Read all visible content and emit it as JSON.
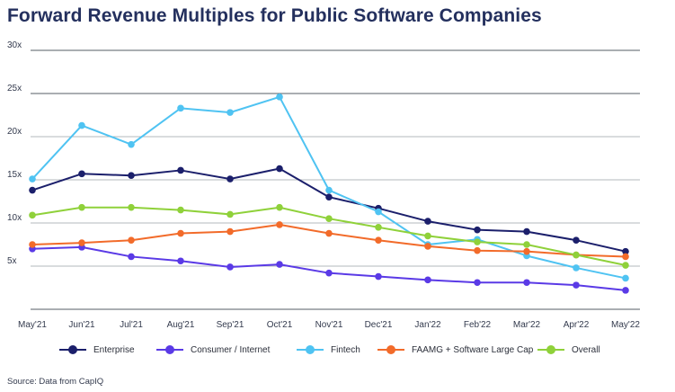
{
  "chart_data": {
    "type": "line",
    "title": "Forward Revenue Multiples for Public Software Companies",
    "source": "Source: Data from CapIQ",
    "xlabel": "",
    "ylabel": "",
    "categories": [
      "May'21",
      "Jun'21",
      "Jul'21",
      "Aug'21",
      "Sep'21",
      "Oct'21",
      "Nov'21",
      "Dec'21",
      "Jan'22",
      "Feb'22",
      "Mar'22",
      "Apr'22",
      "May'22"
    ],
    "yticks": [
      "5x",
      "10x",
      "15x",
      "20x",
      "25x",
      "30x"
    ],
    "ylim": [
      0,
      30
    ],
    "grid": true,
    "legend_position": "bottom",
    "series": [
      {
        "name": "Enterprise",
        "color": "#1b1f6b",
        "values": [
          13.8,
          15.7,
          15.5,
          16.1,
          15.1,
          16.3,
          13.0,
          11.7,
          10.2,
          9.2,
          9.0,
          8.0,
          6.7
        ]
      },
      {
        "name": "Consumer / Internet",
        "color": "#5a3ae6",
        "values": [
          7.0,
          7.2,
          6.1,
          5.6,
          4.9,
          5.2,
          4.2,
          3.8,
          3.4,
          3.1,
          3.1,
          2.8,
          2.2
        ]
      },
      {
        "name": "Fintech",
        "color": "#4fc3f2",
        "values": [
          15.1,
          21.3,
          19.1,
          23.3,
          22.8,
          24.6,
          13.8,
          11.3,
          7.5,
          8.1,
          6.2,
          4.8,
          3.6
        ]
      },
      {
        "name": "FAAMG + Software Large Cap",
        "color": "#f26b2a",
        "values": [
          7.5,
          7.7,
          8.0,
          8.8,
          9.0,
          9.8,
          8.8,
          8.0,
          7.3,
          6.8,
          6.7,
          6.3,
          6.1
        ]
      },
      {
        "name": "Overall",
        "color": "#8fd13a",
        "values": [
          10.9,
          11.8,
          11.8,
          11.5,
          11.0,
          11.8,
          10.5,
          9.5,
          8.5,
          7.8,
          7.5,
          6.3,
          5.1
        ]
      }
    ]
  }
}
